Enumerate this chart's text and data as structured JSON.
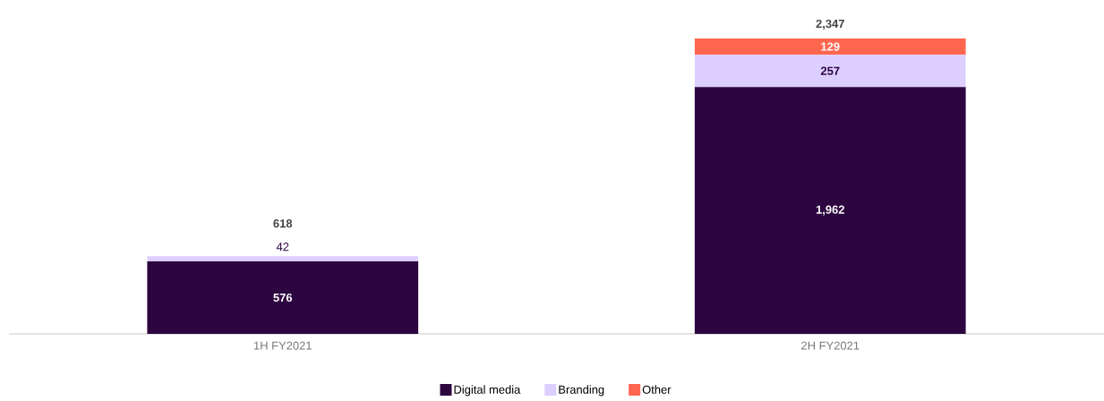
{
  "chart_data": {
    "type": "bar",
    "stacked": true,
    "categories": [
      "1H FY2021",
      "2H FY2021"
    ],
    "series": [
      {
        "name": "Digital media",
        "color": "#2d0640",
        "values": [
          576,
          1962
        ],
        "value_labels": [
          "576",
          "1,962"
        ]
      },
      {
        "name": "Branding",
        "color": "#dccfff",
        "values": [
          42,
          257
        ],
        "value_labels": [
          "42",
          "257"
        ]
      },
      {
        "name": "Other",
        "color": "#ff6650",
        "values": [
          null,
          129
        ],
        "value_labels": [
          null,
          "129"
        ]
      }
    ],
    "totals": [
      "618",
      "2,347"
    ],
    "legend": "bottom"
  }
}
